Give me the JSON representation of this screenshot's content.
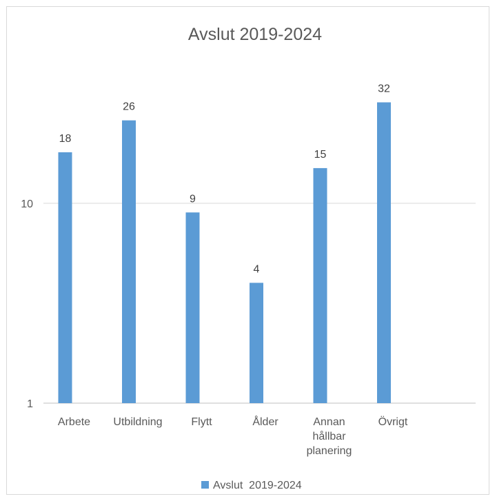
{
  "chart_data": {
    "type": "bar",
    "title": "Avslut 2019-2024",
    "xlabel": "",
    "ylabel": "",
    "yscale": "log",
    "ylim": [
      1,
      100
    ],
    "yticks": [
      "1",
      "10"
    ],
    "grid": true,
    "legend_position": "bottom",
    "bar_color": "#5b9bd5",
    "categories": [
      [
        "Arbete"
      ],
      [
        "Utbildning"
      ],
      [
        "Flytt"
      ],
      [
        "Ålder"
      ],
      [
        "Annan",
        "hållbar",
        "planering"
      ],
      [
        "Övrigt"
      ]
    ],
    "series": [
      {
        "name": "Avslut  2019-2024",
        "values": [
          18,
          26,
          9,
          4,
          15,
          32
        ]
      }
    ]
  }
}
